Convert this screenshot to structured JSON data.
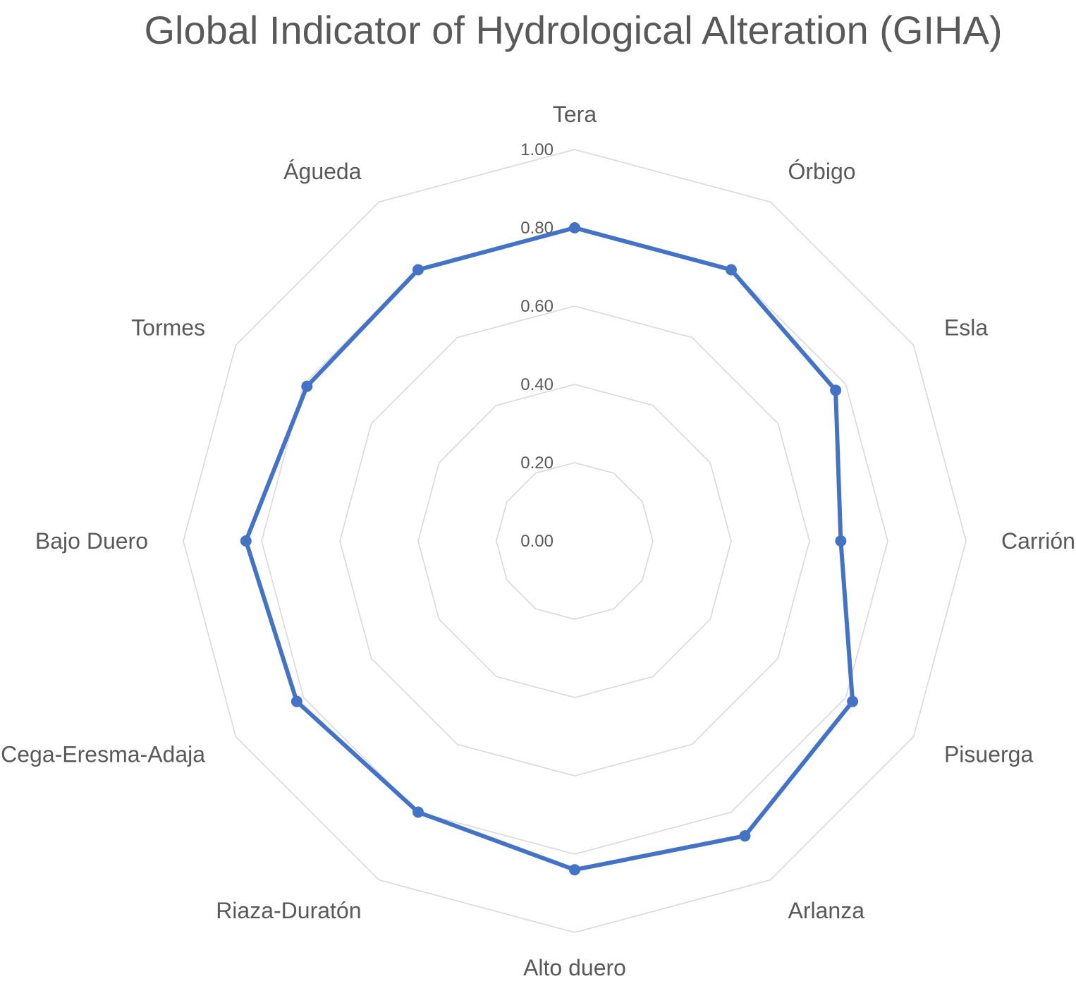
{
  "chart_data": {
    "type": "radar",
    "title": "Global Indicator of Hydrological Alteration (GIHA)",
    "categories": [
      "Tera",
      "Órbigo",
      "Esla",
      "Carrión",
      "Pisuerga",
      "Arlanza",
      "Alto duero",
      "Riaza-Duratón",
      "Cega-Eresma-Adaja",
      "Bajo Duero",
      "Tormes",
      "Águeda"
    ],
    "series": [
      {
        "name": "",
        "values": [
          0.8,
          0.8,
          0.77,
          0.68,
          0.82,
          0.87,
          0.84,
          0.8,
          0.82,
          0.84,
          0.79,
          0.8
        ],
        "color": "#4472c4"
      }
    ],
    "radial_ticks": [
      "0.00",
      "0.20",
      "0.40",
      "0.60",
      "0.80",
      "1.00"
    ],
    "rlim": [
      0,
      1
    ],
    "grid": true,
    "legend": "none",
    "colors": {
      "grid": "#d9d9d9",
      "tick_label": "#595959",
      "category_label": "#595959",
      "title": "#595959"
    }
  }
}
